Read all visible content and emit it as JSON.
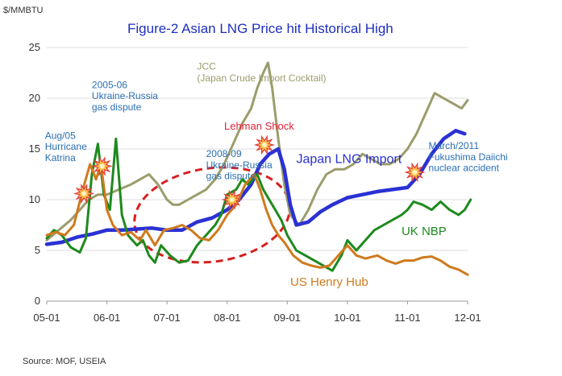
{
  "chart_data": {
    "type": "line",
    "title": "Figure-2 Asian LNG Price hit Historical High",
    "ylabel": "$/MMBTU",
    "xlabel": "",
    "source": "Source: MOF, USEIA",
    "ylim": [
      0,
      25
    ],
    "yticks": [
      0,
      5,
      10,
      15,
      20,
      25
    ],
    "xlim": [
      2005.0,
      2012.0
    ],
    "xticks": [
      {
        "value": 2005.0,
        "label": "05-01"
      },
      {
        "value": 2006.0,
        "label": "06-01"
      },
      {
        "value": 2007.0,
        "label": "07-01"
      },
      {
        "value": 2008.0,
        "label": "08-01"
      },
      {
        "value": 2009.0,
        "label": "09-01"
      },
      {
        "value": 2010.0,
        "label": "10-01"
      },
      {
        "value": 2011.0,
        "label": "11-01"
      },
      {
        "value": 2012.0,
        "label": "12-01"
      }
    ],
    "grid": "horizontal",
    "series": [
      {
        "name": "JCC (Japan Crude Import Cocktail)",
        "color": "#9c9c6c",
        "points": [
          [
            2005.0,
            6.0
          ],
          [
            2005.2,
            7.0
          ],
          [
            2005.4,
            8.0
          ],
          [
            2005.55,
            9.0
          ],
          [
            2005.7,
            10.0
          ],
          [
            2005.85,
            10.5
          ],
          [
            2006.0,
            10.5
          ],
          [
            2006.2,
            11.0
          ],
          [
            2006.4,
            11.5
          ],
          [
            2006.55,
            12.0
          ],
          [
            2006.7,
            12.5
          ],
          [
            2006.85,
            11.5
          ],
          [
            2007.0,
            10.0
          ],
          [
            2007.1,
            9.5
          ],
          [
            2007.2,
            9.5
          ],
          [
            2007.35,
            10.0
          ],
          [
            2007.5,
            10.5
          ],
          [
            2007.65,
            11.0
          ],
          [
            2007.8,
            12.0
          ],
          [
            2007.95,
            13.5
          ],
          [
            2008.1,
            15.5
          ],
          [
            2008.25,
            17.5
          ],
          [
            2008.4,
            19.0
          ],
          [
            2008.5,
            21.0
          ],
          [
            2008.6,
            22.5
          ],
          [
            2008.68,
            23.5
          ],
          [
            2008.75,
            21.0
          ],
          [
            2008.85,
            16.0
          ],
          [
            2008.95,
            11.5
          ],
          [
            2009.05,
            8.5
          ],
          [
            2009.2,
            7.5
          ],
          [
            2009.35,
            9.0
          ],
          [
            2009.5,
            11.0
          ],
          [
            2009.65,
            12.5
          ],
          [
            2009.8,
            13.0
          ],
          [
            2009.95,
            13.0
          ],
          [
            2010.1,
            13.5
          ],
          [
            2010.25,
            14.5
          ],
          [
            2010.4,
            14.0
          ],
          [
            2010.55,
            13.5
          ],
          [
            2010.7,
            13.5
          ],
          [
            2010.85,
            14.0
          ],
          [
            2011.0,
            15.0
          ],
          [
            2011.15,
            16.5
          ],
          [
            2011.3,
            18.5
          ],
          [
            2011.45,
            20.5
          ],
          [
            2011.6,
            20.0
          ],
          [
            2011.75,
            19.5
          ],
          [
            2011.9,
            19.0
          ],
          [
            2012.0,
            19.8
          ]
        ]
      },
      {
        "name": "Japan LNG Import",
        "color": "#2a31d4",
        "points": [
          [
            2005.0,
            5.6
          ],
          [
            2005.25,
            5.8
          ],
          [
            2005.5,
            6.3
          ],
          [
            2005.75,
            6.6
          ],
          [
            2006.0,
            7.0
          ],
          [
            2006.25,
            7.0
          ],
          [
            2006.5,
            7.1
          ],
          [
            2006.75,
            7.2
          ],
          [
            2007.0,
            7.0
          ],
          [
            2007.25,
            7.0
          ],
          [
            2007.5,
            7.8
          ],
          [
            2007.75,
            8.2
          ],
          [
            2008.0,
            9.0
          ],
          [
            2008.2,
            10.0
          ],
          [
            2008.4,
            11.5
          ],
          [
            2008.55,
            13.5
          ],
          [
            2008.7,
            14.5
          ],
          [
            2008.85,
            15.0
          ],
          [
            2008.95,
            13.0
          ],
          [
            2009.05,
            9.5
          ],
          [
            2009.15,
            7.5
          ],
          [
            2009.35,
            7.8
          ],
          [
            2009.55,
            8.8
          ],
          [
            2009.75,
            9.5
          ],
          [
            2010.0,
            10.2
          ],
          [
            2010.25,
            10.5
          ],
          [
            2010.5,
            10.8
          ],
          [
            2010.75,
            11.0
          ],
          [
            2011.0,
            11.2
          ],
          [
            2011.2,
            12.5
          ],
          [
            2011.4,
            14.5
          ],
          [
            2011.6,
            16.0
          ],
          [
            2011.8,
            16.8
          ],
          [
            2011.95,
            16.5
          ]
        ]
      },
      {
        "name": "UK NBP",
        "color": "#1e8a1e",
        "points": [
          [
            2005.0,
            6.2
          ],
          [
            2005.12,
            7.0
          ],
          [
            2005.25,
            6.5
          ],
          [
            2005.4,
            5.3
          ],
          [
            2005.55,
            4.8
          ],
          [
            2005.65,
            6.2
          ],
          [
            2005.75,
            12.5
          ],
          [
            2005.85,
            15.5
          ],
          [
            2005.95,
            10.5
          ],
          [
            2006.05,
            9.0
          ],
          [
            2006.15,
            16.0
          ],
          [
            2006.25,
            8.5
          ],
          [
            2006.35,
            6.5
          ],
          [
            2006.5,
            5.5
          ],
          [
            2006.6,
            6.0
          ],
          [
            2006.7,
            4.5
          ],
          [
            2006.8,
            3.8
          ],
          [
            2006.9,
            5.5
          ],
          [
            2007.05,
            4.5
          ],
          [
            2007.2,
            3.8
          ],
          [
            2007.35,
            4.0
          ],
          [
            2007.5,
            5.5
          ],
          [
            2007.65,
            6.5
          ],
          [
            2007.8,
            7.5
          ],
          [
            2007.9,
            8.5
          ],
          [
            2008.0,
            10.5
          ],
          [
            2008.15,
            11.0
          ],
          [
            2008.25,
            12.0
          ],
          [
            2008.35,
            11.5
          ],
          [
            2008.5,
            12.5
          ],
          [
            2008.6,
            11.0
          ],
          [
            2008.7,
            10.0
          ],
          [
            2008.8,
            9.0
          ],
          [
            2008.9,
            8.0
          ],
          [
            2009.0,
            6.5
          ],
          [
            2009.15,
            5.0
          ],
          [
            2009.3,
            4.5
          ],
          [
            2009.45,
            4.0
          ],
          [
            2009.6,
            3.5
          ],
          [
            2009.75,
            3.0
          ],
          [
            2009.9,
            4.5
          ],
          [
            2010.0,
            6.0
          ],
          [
            2010.15,
            5.0
          ],
          [
            2010.3,
            6.0
          ],
          [
            2010.45,
            7.0
          ],
          [
            2010.6,
            7.5
          ],
          [
            2010.75,
            8.0
          ],
          [
            2010.9,
            8.5
          ],
          [
            2011.0,
            9.0
          ],
          [
            2011.1,
            9.8
          ],
          [
            2011.25,
            9.5
          ],
          [
            2011.4,
            9.0
          ],
          [
            2011.55,
            9.8
          ],
          [
            2011.7,
            9.0
          ],
          [
            2011.85,
            8.5
          ],
          [
            2011.95,
            9.0
          ],
          [
            2012.05,
            10.0
          ]
        ]
      },
      {
        "name": "US Henry Hub",
        "color": "#d07a1e",
        "points": [
          [
            2005.0,
            6.5
          ],
          [
            2005.15,
            6.8
          ],
          [
            2005.3,
            6.5
          ],
          [
            2005.45,
            7.5
          ],
          [
            2005.6,
            11.0
          ],
          [
            2005.72,
            13.5
          ],
          [
            2005.82,
            12.0
          ],
          [
            2005.9,
            13.5
          ],
          [
            2006.0,
            9.0
          ],
          [
            2006.1,
            7.5
          ],
          [
            2006.25,
            6.5
          ],
          [
            2006.4,
            6.8
          ],
          [
            2006.55,
            6.0
          ],
          [
            2006.65,
            7.0
          ],
          [
            2006.8,
            5.5
          ],
          [
            2006.95,
            7.0
          ],
          [
            2007.1,
            7.2
          ],
          [
            2007.25,
            7.5
          ],
          [
            2007.4,
            7.0
          ],
          [
            2007.55,
            6.2
          ],
          [
            2007.7,
            6.0
          ],
          [
            2007.85,
            7.0
          ],
          [
            2008.0,
            8.5
          ],
          [
            2008.15,
            9.5
          ],
          [
            2008.3,
            11.5
          ],
          [
            2008.45,
            12.5
          ],
          [
            2008.55,
            11.0
          ],
          [
            2008.65,
            9.0
          ],
          [
            2008.75,
            7.5
          ],
          [
            2008.85,
            6.5
          ],
          [
            2008.95,
            5.8
          ],
          [
            2009.1,
            4.5
          ],
          [
            2009.25,
            3.8
          ],
          [
            2009.4,
            3.5
          ],
          [
            2009.55,
            3.3
          ],
          [
            2009.7,
            3.5
          ],
          [
            2009.85,
            4.5
          ],
          [
            2010.0,
            5.5
          ],
          [
            2010.15,
            4.5
          ],
          [
            2010.3,
            4.2
          ],
          [
            2010.5,
            4.5
          ],
          [
            2010.65,
            4.0
          ],
          [
            2010.8,
            3.7
          ],
          [
            2010.95,
            4.0
          ],
          [
            2011.1,
            4.0
          ],
          [
            2011.25,
            4.3
          ],
          [
            2011.4,
            4.4
          ],
          [
            2011.55,
            4.0
          ],
          [
            2011.7,
            3.4
          ],
          [
            2011.85,
            3.1
          ],
          [
            2012.0,
            2.6
          ]
        ]
      }
    ],
    "series_labels": [
      {
        "series": 0,
        "lines": [
          "JCC",
          "(Japan Crude Import Cocktail)"
        ],
        "x": 2007.5,
        "y": 22.8,
        "size": 12,
        "weight": "normal"
      },
      {
        "series": 1,
        "lines": [
          "Japan LNG Import"
        ],
        "x": 2009.15,
        "y": 13.6,
        "size": 16,
        "weight": "normal"
      },
      {
        "series": 2,
        "lines": [
          "UK NBP"
        ],
        "x": 2010.9,
        "y": 6.5,
        "size": 15,
        "weight": "normal"
      },
      {
        "series": 3,
        "lines": [
          "US Henry Hub"
        ],
        "x": 2009.05,
        "y": 1.5,
        "size": 15,
        "weight": "normal"
      }
    ],
    "annotations": [
      {
        "lines": [
          "Aug/05",
          "Hurricane",
          "Katrina"
        ],
        "x": 2004.97,
        "y": 16.0,
        "color": "#2a6fb5",
        "size": 12
      },
      {
        "lines": [
          "2005-06",
          "Ukraine-Russia",
          "gas dispute"
        ],
        "x": 2005.75,
        "y": 21.0,
        "color": "#2a6fb5",
        "size": 12
      },
      {
        "lines": [
          "2008-09",
          "Ukraine-Russia",
          "gas dispute"
        ],
        "x": 2007.65,
        "y": 14.2,
        "color": "#2a6fb5",
        "size": 12
      },
      {
        "lines": [
          "Lehman Shock"
        ],
        "x": 2007.95,
        "y": 16.9,
        "color": "#e0243a",
        "size": 13
      },
      {
        "lines": [
          "March/2011",
          "Fukushima Daiichi",
          "nuclear accident"
        ],
        "x": 2011.35,
        "y": 15.0,
        "color": "#2a6fb5",
        "size": 12
      }
    ],
    "markers": [
      {
        "label": "Katrina",
        "x": 2005.62,
        "y": 10.6
      },
      {
        "label": "Ukraine-Russia 2005-06",
        "x": 2005.92,
        "y": 13.3
      },
      {
        "label": "Ukraine-Russia 2008-09",
        "x": 2008.08,
        "y": 10.0
      },
      {
        "label": "Lehman",
        "x": 2008.62,
        "y": 15.4
      },
      {
        "label": "Fukushima",
        "x": 2011.12,
        "y": 12.7
      }
    ],
    "highlight": {
      "shape": "dashed-ellipse",
      "color": "#d81e1e",
      "cx": 2007.75,
      "cy": 8.5,
      "rx": 1.3,
      "ry": 4.6
    }
  }
}
